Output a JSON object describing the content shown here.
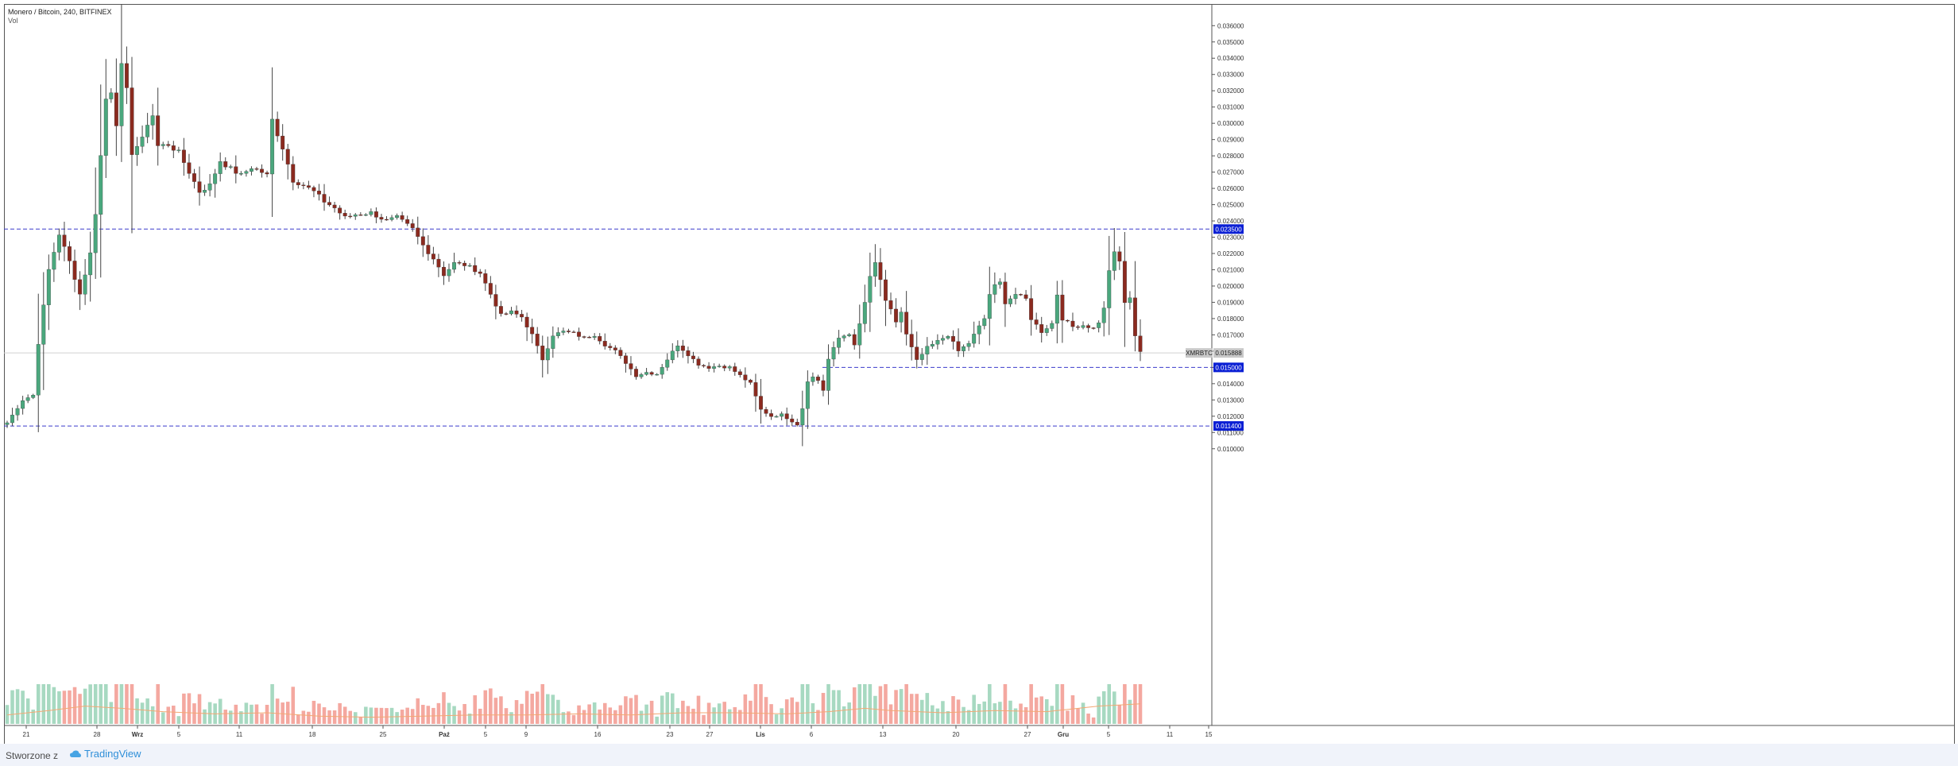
{
  "header": {
    "title": "Monero / Bitcoin, 240, BITFINEX",
    "subtitle": "Vol"
  },
  "footer": {
    "label": "Stworzone z",
    "brand": "TradingView"
  },
  "colors": {
    "up": "#4aa77d",
    "down": "#8b2a1f",
    "up_volume": "#a7d9c1",
    "down_volume": "#f4a8a0",
    "volume_ma": "#f3a874",
    "level_line": "#3b3bcb",
    "label_bg": "#0a1fd4",
    "symbol_bg": "#c8c8c8",
    "axis_text": "#333333"
  },
  "chart_data": {
    "type": "candlestick",
    "symbol_label": "XMRBTC",
    "last_price": "0.015888",
    "ylim": [
      0.0095,
      0.0366
    ],
    "y_ticks": [
      "0.010000",
      "0.011000",
      "0.012000",
      "0.013000",
      "0.014000",
      "0.015000",
      "0.016000",
      "0.017000",
      "0.018000",
      "0.019000",
      "0.020000",
      "0.021000",
      "0.022000",
      "0.023000",
      "0.024000",
      "0.025000",
      "0.026000",
      "0.027000",
      "0.028000",
      "0.029000",
      "0.030000",
      "0.031000",
      "0.032000",
      "0.033000",
      "0.034000",
      "0.035000",
      "0.036000"
    ],
    "x_ticks": [
      {
        "label": "21",
        "bold": false
      },
      {
        "label": "28",
        "bold": false
      },
      {
        "label": "Wrz",
        "bold": true
      },
      {
        "label": "5",
        "bold": false
      },
      {
        "label": "11",
        "bold": false
      },
      {
        "label": "18",
        "bold": false
      },
      {
        "label": "25",
        "bold": false
      },
      {
        "label": "Paź",
        "bold": true
      },
      {
        "label": "5",
        "bold": false
      },
      {
        "label": "9",
        "bold": false
      },
      {
        "label": "16",
        "bold": false
      },
      {
        "label": "23",
        "bold": false
      },
      {
        "label": "27",
        "bold": false
      },
      {
        "label": "Lis",
        "bold": true
      },
      {
        "label": "6",
        "bold": false
      },
      {
        "label": "13",
        "bold": false
      },
      {
        "label": "20",
        "bold": false
      },
      {
        "label": "27",
        "bold": false
      },
      {
        "label": "Gru",
        "bold": true
      },
      {
        "label": "5",
        "bold": false
      },
      {
        "label": "11",
        "bold": false
      },
      {
        "label": "15",
        "bold": false
      }
    ],
    "levels": [
      {
        "value": 0.0235,
        "label": "0.023500"
      },
      {
        "value": 0.015,
        "label": "0.015000"
      },
      {
        "value": 0.0114,
        "label": "0.011400"
      }
    ],
    "price_path": [
      [
        0,
        0.0116
      ],
      [
        3,
        0.013
      ],
      [
        5,
        0.0133
      ],
      [
        6,
        0.0165
      ],
      [
        8,
        0.021
      ],
      [
        10,
        0.0232
      ],
      [
        12,
        0.0215
      ],
      [
        14,
        0.0195
      ],
      [
        16,
        0.022
      ],
      [
        17,
        0.0245
      ],
      [
        18,
        0.028
      ],
      [
        19,
        0.0315
      ],
      [
        20,
        0.032
      ],
      [
        21,
        0.03
      ],
      [
        22,
        0.0335
      ],
      [
        23,
        0.032
      ],
      [
        24,
        0.0282
      ],
      [
        26,
        0.029
      ],
      [
        27,
        0.03
      ],
      [
        28,
        0.0305
      ],
      [
        29,
        0.0286
      ],
      [
        31,
        0.0287
      ],
      [
        33,
        0.0282
      ],
      [
        35,
        0.027
      ],
      [
        37,
        0.0258
      ],
      [
        39,
        0.0262
      ],
      [
        41,
        0.0277
      ],
      [
        43,
        0.0272
      ],
      [
        45,
        0.0268
      ],
      [
        47,
        0.0273
      ],
      [
        49,
        0.027
      ],
      [
        50,
        0.0268
      ],
      [
        51,
        0.0302
      ],
      [
        53,
        0.0285
      ],
      [
        55,
        0.0265
      ],
      [
        57,
        0.0262
      ],
      [
        59,
        0.0258
      ],
      [
        61,
        0.0252
      ],
      [
        63,
        0.0248
      ],
      [
        65,
        0.0242
      ],
      [
        67,
        0.0244
      ],
      [
        70,
        0.0245
      ],
      [
        73,
        0.024
      ],
      [
        75,
        0.0242
      ],
      [
        78,
        0.0235
      ],
      [
        80,
        0.0225
      ],
      [
        82,
        0.0217
      ],
      [
        84,
        0.0207
      ],
      [
        86,
        0.0214
      ],
      [
        88,
        0.0213
      ],
      [
        90,
        0.021
      ],
      [
        91,
        0.0208
      ],
      [
        93,
        0.0195
      ],
      [
        95,
        0.0182
      ],
      [
        97,
        0.0184
      ],
      [
        99,
        0.0181
      ],
      [
        101,
        0.017
      ],
      [
        103,
        0.0155
      ],
      [
        105,
        0.017
      ],
      [
        107,
        0.0172
      ],
      [
        109,
        0.0171
      ],
      [
        111,
        0.0168
      ],
      [
        113,
        0.017
      ],
      [
        115,
        0.0164
      ],
      [
        117,
        0.016
      ],
      [
        119,
        0.0153
      ],
      [
        121,
        0.0145
      ],
      [
        123,
        0.0147
      ],
      [
        125,
        0.0146
      ],
      [
        127,
        0.0155
      ],
      [
        129,
        0.0164
      ],
      [
        131,
        0.0158
      ],
      [
        133,
        0.0152
      ],
      [
        135,
        0.015
      ],
      [
        137,
        0.0151
      ],
      [
        139,
        0.015
      ],
      [
        141,
        0.0145
      ],
      [
        143,
        0.014
      ],
      [
        145,
        0.0124
      ],
      [
        147,
        0.012
      ],
      [
        149,
        0.0121
      ],
      [
        151,
        0.0117
      ],
      [
        152,
        0.0115
      ],
      [
        153,
        0.0125
      ],
      [
        154,
        0.0142
      ],
      [
        155,
        0.0144
      ],
      [
        156,
        0.0142
      ],
      [
        157,
        0.0136
      ],
      [
        158,
        0.0155
      ],
      [
        160,
        0.0168
      ],
      [
        162,
        0.0171
      ],
      [
        163,
        0.0163
      ],
      [
        165,
        0.019
      ],
      [
        166,
        0.0205
      ],
      [
        167,
        0.0214
      ],
      [
        168,
        0.0204
      ],
      [
        169,
        0.019
      ],
      [
        170,
        0.0185
      ],
      [
        171,
        0.0178
      ],
      [
        172,
        0.0184
      ],
      [
        173,
        0.017
      ],
      [
        174,
        0.0162
      ],
      [
        175,
        0.0154
      ],
      [
        176,
        0.0158
      ],
      [
        177,
        0.0162
      ],
      [
        179,
        0.0166
      ],
      [
        181,
        0.017
      ],
      [
        183,
        0.016
      ],
      [
        185,
        0.0165
      ],
      [
        187,
        0.0175
      ],
      [
        188,
        0.018
      ],
      [
        189,
        0.0195
      ],
      [
        190,
        0.02
      ],
      [
        191,
        0.0202
      ],
      [
        192,
        0.019
      ],
      [
        194,
        0.0195
      ],
      [
        196,
        0.0192
      ],
      [
        197,
        0.018
      ],
      [
        199,
        0.0172
      ],
      [
        201,
        0.0177
      ],
      [
        202,
        0.0195
      ],
      [
        203,
        0.018
      ],
      [
        205,
        0.0175
      ],
      [
        207,
        0.0176
      ],
      [
        209,
        0.0174
      ],
      [
        210,
        0.0178
      ],
      [
        211,
        0.0186
      ],
      [
        212,
        0.021
      ],
      [
        213,
        0.022
      ],
      [
        214,
        0.0215
      ],
      [
        215,
        0.019
      ],
      [
        216,
        0.0192
      ],
      [
        217,
        0.017
      ],
      [
        218,
        0.016
      ]
    ],
    "volume_ma": [
      [
        0,
        0.8
      ],
      [
        8,
        1.2
      ],
      [
        15,
        1.6
      ],
      [
        22,
        1.4
      ],
      [
        30,
        1.1
      ],
      [
        40,
        0.9
      ],
      [
        50,
        1.0
      ],
      [
        60,
        0.7
      ],
      [
        70,
        0.6
      ],
      [
        80,
        0.7
      ],
      [
        90,
        0.8
      ],
      [
        100,
        0.8
      ],
      [
        110,
        0.9
      ],
      [
        120,
        0.8
      ],
      [
        130,
        1.0
      ],
      [
        140,
        1.0
      ],
      [
        150,
        0.9
      ],
      [
        158,
        1.1
      ],
      [
        165,
        1.4
      ],
      [
        170,
        1.2
      ],
      [
        180,
        1.0
      ],
      [
        190,
        1.2
      ],
      [
        200,
        1.1
      ],
      [
        210,
        1.6
      ],
      [
        218,
        1.8
      ]
    ]
  }
}
